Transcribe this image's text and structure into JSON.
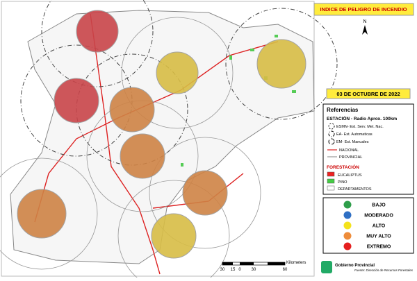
{
  "header": {
    "title": "INDICE DE PELIGRO DE INCENDIO",
    "north": "N",
    "date": "03 DE OCTUBRE DE 2022"
  },
  "legend": {
    "title": "Referencias",
    "station_title": "ESTACIÓN - Radio Aprox. 100km",
    "stations": [
      "ESMN- Est. Serv. Met. Nac.",
      "EA- Est. Automaticas",
      "EM- Est. Manuales"
    ],
    "roads": [
      "NACIONAL",
      "PROVINCIAL"
    ],
    "forest_title": "FORESTACIÓN",
    "forest": [
      "EUCALIPTUS",
      "PINO",
      "DEPARTAMENTOS"
    ]
  },
  "levels": [
    "BAJO",
    "MODERADO",
    "ALTO",
    "MUY ALTO",
    "EXTREMO"
  ],
  "scale": {
    "unit": "Kilometers",
    "ticks": [
      "30",
      "15",
      "0",
      "30",
      "60"
    ]
  },
  "footer": {
    "org": "Gobierno Provincial",
    "source": "Fuente: Dirección de Recursos Forestales"
  }
}
